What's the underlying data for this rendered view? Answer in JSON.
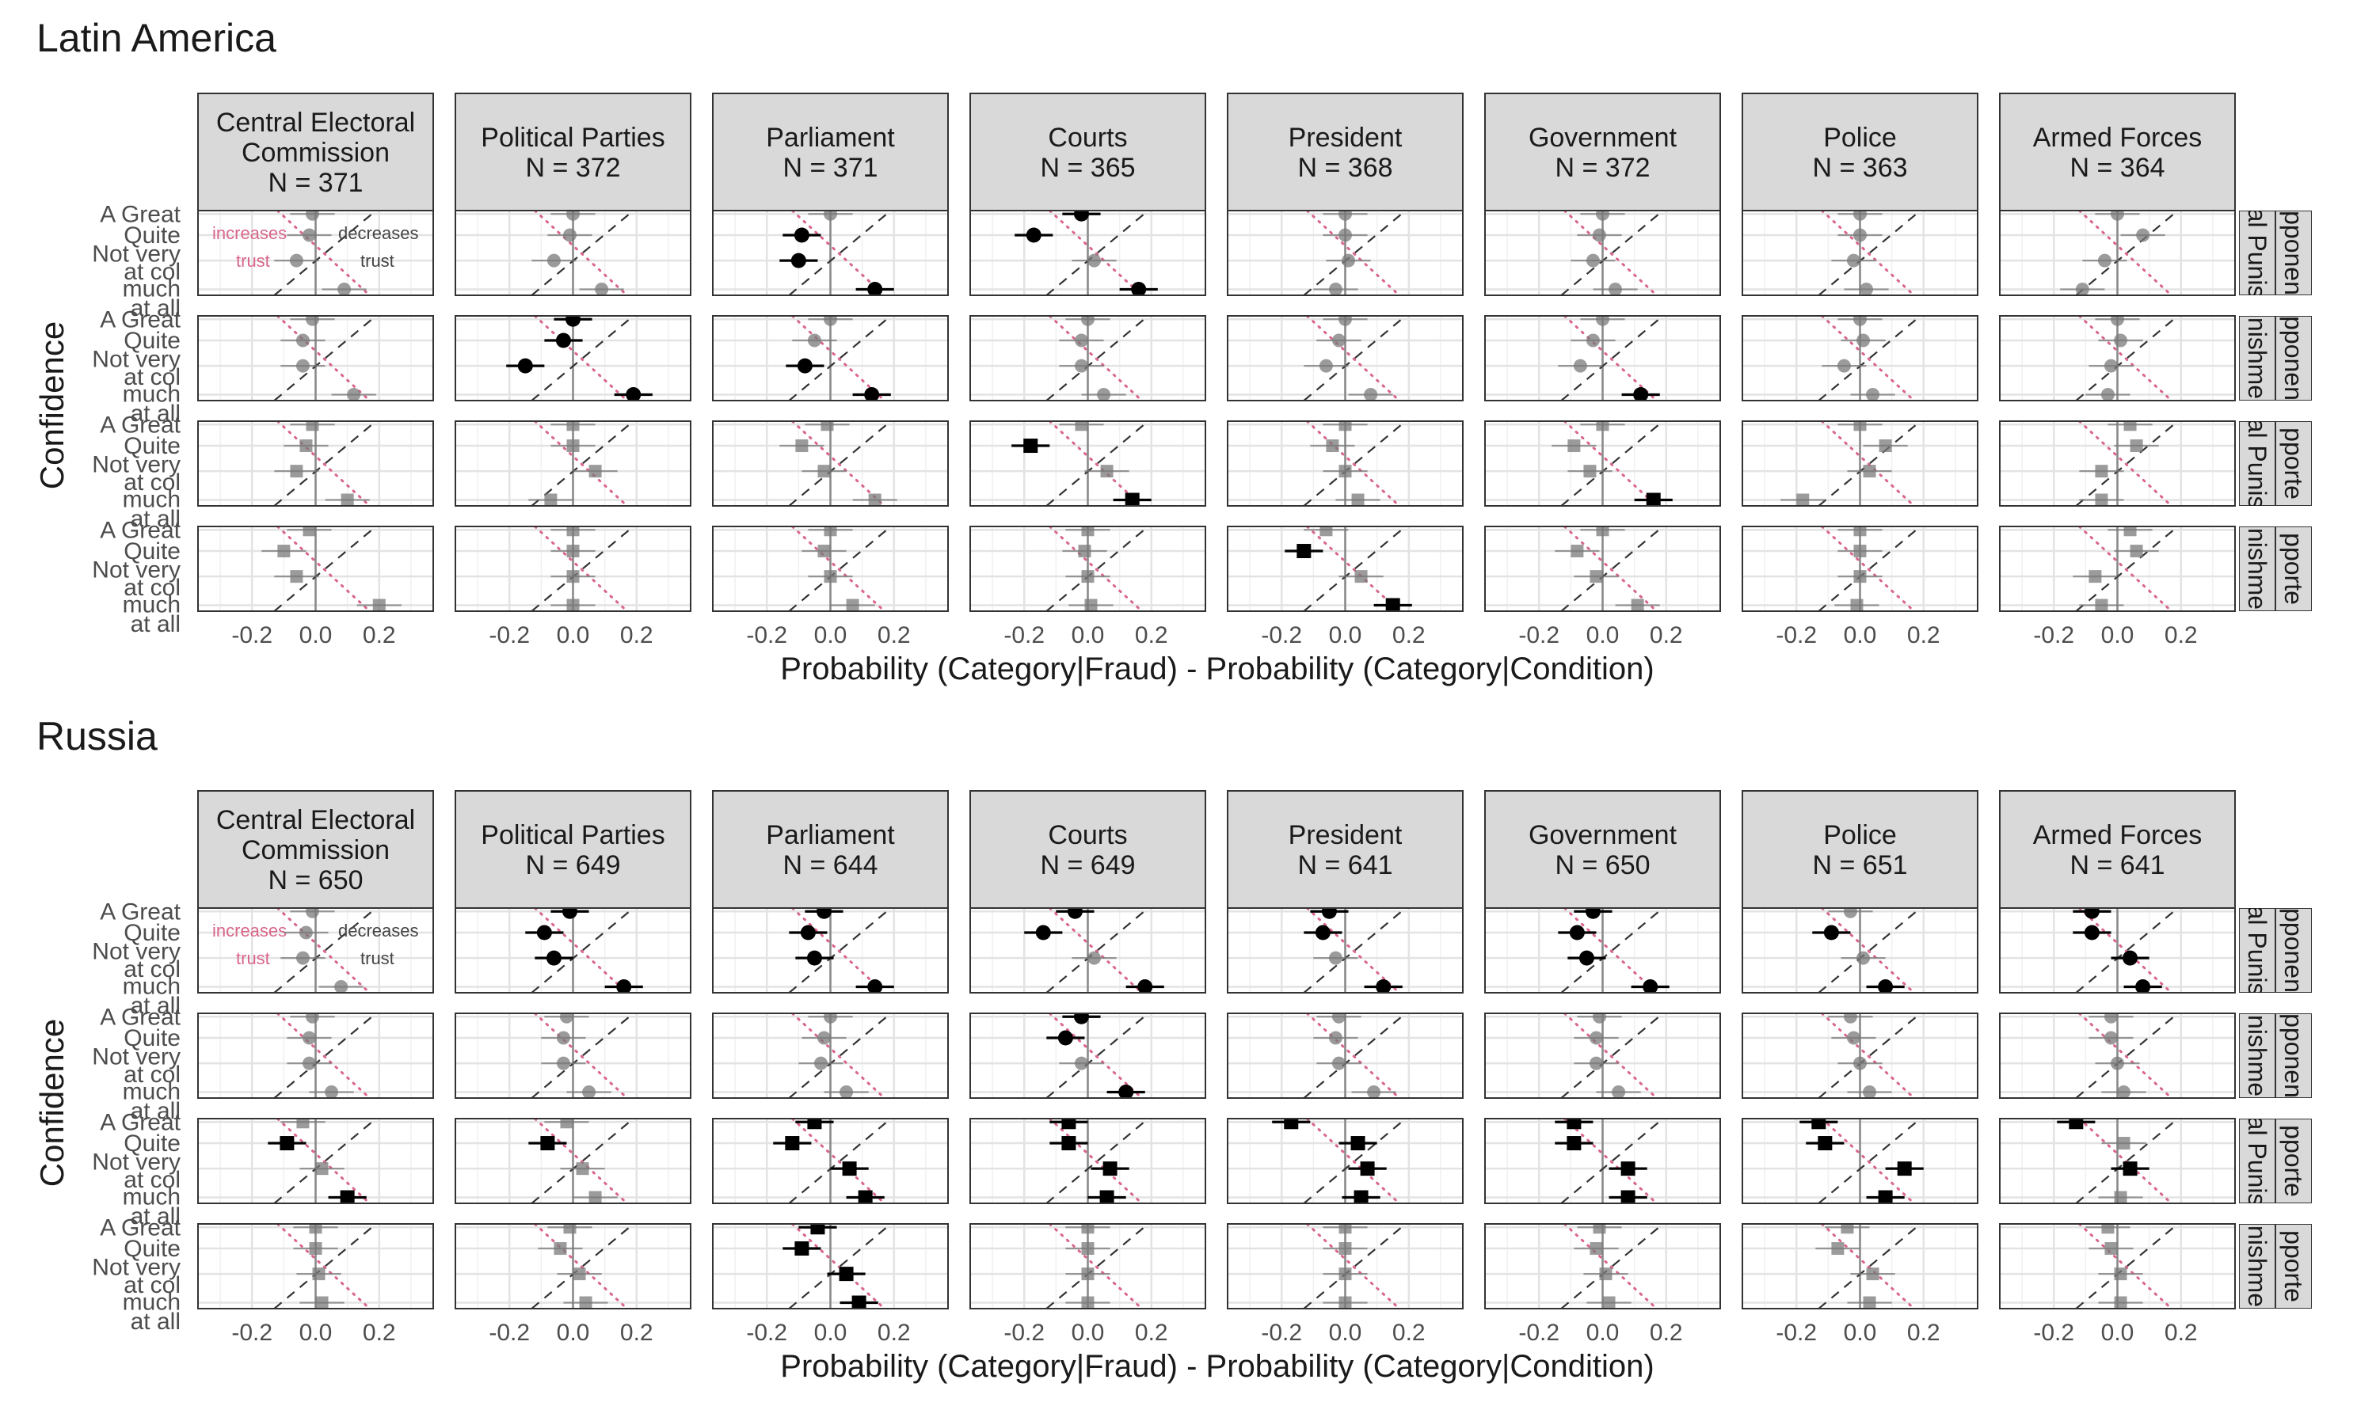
{
  "chart_data": [
    {
      "type": "scatter",
      "title": "Latin America",
      "ylabel": "Confidence",
      "xlabel": "Probability (Category|Fraud) - Probability (Category|Condition)",
      "xlim": [
        -0.37,
        0.37
      ],
      "xticks": [
        -0.2,
        0.0,
        0.2
      ],
      "xtick_labels": [
        "-0.2",
        "0.0",
        "0.2"
      ],
      "y_categories": [
        "A Great",
        "Quite",
        "Not very",
        "None at all"
      ],
      "y_tick_labels": [
        "A Great",
        "Quite",
        "Not very",
        "at col",
        "much",
        "at all"
      ],
      "strip_right_labels": [
        "al Punis | pponen",
        "nishme | pponen",
        "al Punis | pporte",
        "nishme | pporte"
      ],
      "annotations": {
        "increases": "increases",
        "decreases": "decreases",
        "trust": "trust"
      },
      "grid": true,
      "panels": [
        {
          "name": "Central Electoral Commission",
          "label": "Central Electoral\nCommission\nN = 371",
          "rows": [
            [
              -0.01,
              -0.02,
              -0.06,
              0.09
            ],
            [
              -0.01,
              -0.04,
              -0.04,
              0.12
            ],
            [
              -0.01,
              -0.03,
              -0.06,
              0.1
            ],
            [
              -0.02,
              -0.1,
              -0.06,
              0.2
            ]
          ],
          "sig": [
            [
              0,
              0,
              0,
              0
            ],
            [
              0,
              0,
              0,
              0
            ],
            [
              0,
              0,
              0,
              0
            ],
            [
              0,
              0,
              0,
              0
            ]
          ]
        },
        {
          "name": "Political Parties",
          "label": "Political Parties\nN = 372",
          "rows": [
            [
              0.0,
              -0.01,
              -0.06,
              0.09
            ],
            [
              0.0,
              -0.03,
              -0.15,
              0.19
            ],
            [
              0.0,
              0.0,
              0.07,
              -0.07
            ],
            [
              0.0,
              0.0,
              0.0,
              0.0
            ]
          ],
          "sig": [
            [
              0,
              0,
              0,
              0
            ],
            [
              1,
              1,
              1,
              1
            ],
            [
              0,
              0,
              0,
              0
            ],
            [
              0,
              0,
              0,
              0
            ]
          ]
        },
        {
          "name": "Parliament",
          "label": "Parliament\nN = 371",
          "rows": [
            [
              0.0,
              -0.09,
              -0.1,
              0.14
            ],
            [
              0.0,
              -0.05,
              -0.08,
              0.13
            ],
            [
              -0.01,
              -0.09,
              -0.02,
              0.14
            ],
            [
              0.0,
              -0.02,
              0.0,
              0.07
            ]
          ],
          "sig": [
            [
              0,
              1,
              1,
              1
            ],
            [
              0,
              0,
              1,
              1
            ],
            [
              0,
              0,
              0,
              0
            ],
            [
              0,
              0,
              0,
              0
            ]
          ]
        },
        {
          "name": "Courts",
          "label": "Courts\nN = 365",
          "rows": [
            [
              -0.02,
              -0.17,
              0.02,
              0.16
            ],
            [
              0.0,
              -0.02,
              -0.02,
              0.05
            ],
            [
              -0.02,
              -0.18,
              0.06,
              0.14
            ],
            [
              0.0,
              -0.01,
              0.0,
              0.01
            ]
          ],
          "sig": [
            [
              1,
              1,
              0,
              1
            ],
            [
              0,
              0,
              0,
              0
            ],
            [
              0,
              1,
              0,
              1
            ],
            [
              0,
              0,
              0,
              0
            ]
          ]
        },
        {
          "name": "President",
          "label": "President\nN = 368",
          "rows": [
            [
              0.0,
              0.0,
              0.01,
              -0.03
            ],
            [
              0.0,
              -0.02,
              -0.06,
              0.08
            ],
            [
              0.0,
              -0.04,
              0.0,
              0.04
            ],
            [
              -0.06,
              -0.13,
              0.05,
              0.15
            ]
          ],
          "sig": [
            [
              0,
              0,
              0,
              0
            ],
            [
              0,
              0,
              0,
              0
            ],
            [
              0,
              0,
              0,
              0
            ],
            [
              0,
              1,
              0,
              1
            ]
          ]
        },
        {
          "name": "Government",
          "label": "Government\nN = 372",
          "rows": [
            [
              0.0,
              -0.01,
              -0.03,
              0.04
            ],
            [
              0.0,
              -0.03,
              -0.07,
              0.12
            ],
            [
              0.0,
              -0.09,
              -0.04,
              0.16
            ],
            [
              0.0,
              -0.08,
              -0.02,
              0.11
            ]
          ],
          "sig": [
            [
              0,
              0,
              0,
              0
            ],
            [
              0,
              0,
              0,
              1
            ],
            [
              0,
              0,
              0,
              1
            ],
            [
              0,
              0,
              0,
              0
            ]
          ]
        },
        {
          "name": "Police",
          "label": "Police\nN = 363",
          "rows": [
            [
              0.0,
              0.0,
              -0.02,
              0.02
            ],
            [
              0.0,
              0.01,
              -0.05,
              0.04
            ],
            [
              0.0,
              0.08,
              0.03,
              -0.18
            ],
            [
              0.0,
              0.0,
              0.0,
              -0.01
            ]
          ],
          "sig": [
            [
              0,
              0,
              0,
              0
            ],
            [
              0,
              0,
              0,
              0
            ],
            [
              0,
              0,
              0,
              0
            ],
            [
              0,
              0,
              0,
              0
            ]
          ]
        },
        {
          "name": "Armed Forces",
          "label": "Armed Forces\nN = 364",
          "rows": [
            [
              0.0,
              0.08,
              -0.04,
              -0.11
            ],
            [
              0.0,
              0.01,
              -0.02,
              -0.03
            ],
            [
              0.04,
              0.06,
              -0.05,
              -0.05
            ],
            [
              0.04,
              0.06,
              -0.07,
              -0.05
            ]
          ],
          "sig": [
            [
              0,
              0,
              0,
              0
            ],
            [
              0,
              0,
              0,
              0
            ],
            [
              0,
              0,
              0,
              0
            ],
            [
              0,
              0,
              0,
              0
            ]
          ]
        }
      ]
    },
    {
      "type": "scatter",
      "title": "Russia",
      "ylabel": "Confidence",
      "xlabel": "Probability (Category|Fraud) - Probability (Category|Condition)",
      "xlim": [
        -0.37,
        0.37
      ],
      "xticks": [
        -0.2,
        0.0,
        0.2
      ],
      "xtick_labels": [
        "-0.2",
        "0.0",
        "0.2"
      ],
      "y_categories": [
        "A Great",
        "Quite",
        "Not very",
        "None at all"
      ],
      "y_tick_labels": [
        "A Great",
        "Quite",
        "Not very",
        "at col",
        "much",
        "at all"
      ],
      "strip_right_labels": [
        "al Punis | pponen",
        "nishme | pponen",
        "al Punis | pporte",
        "nishme | pporte"
      ],
      "annotations": {
        "increases": "increases",
        "decreases": "decreases",
        "trust": "trust"
      },
      "grid": true,
      "panels": [
        {
          "name": "Central Electoral Commission",
          "label": "Central Electoral\nCommission\nN = 650",
          "rows": [
            [
              -0.01,
              -0.03,
              -0.04,
              0.08
            ],
            [
              -0.01,
              -0.02,
              -0.02,
              0.05
            ],
            [
              -0.04,
              -0.09,
              0.02,
              0.1
            ],
            [
              0.0,
              0.0,
              0.01,
              0.02
            ]
          ],
          "sig": [
            [
              0,
              0,
              0,
              0
            ],
            [
              0,
              0,
              0,
              0
            ],
            [
              0,
              1,
              0,
              1
            ],
            [
              0,
              0,
              0,
              0
            ]
          ]
        },
        {
          "name": "Political Parties",
          "label": "Political Parties\nN = 649",
          "rows": [
            [
              -0.01,
              -0.09,
              -0.06,
              0.16
            ],
            [
              -0.02,
              -0.03,
              -0.03,
              0.05
            ],
            [
              -0.02,
              -0.08,
              0.03,
              0.07
            ],
            [
              -0.01,
              -0.04,
              0.02,
              0.04
            ]
          ],
          "sig": [
            [
              1,
              1,
              1,
              1
            ],
            [
              0,
              0,
              0,
              0
            ],
            [
              0,
              1,
              0,
              0
            ],
            [
              0,
              0,
              0,
              0
            ]
          ]
        },
        {
          "name": "Parliament",
          "label": "Parliament\nN = 644",
          "rows": [
            [
              -0.02,
              -0.07,
              -0.05,
              0.14
            ],
            [
              0.0,
              -0.02,
              -0.03,
              0.05
            ],
            [
              -0.05,
              -0.12,
              0.06,
              0.11
            ],
            [
              -0.04,
              -0.09,
              0.05,
              0.09
            ]
          ],
          "sig": [
            [
              1,
              1,
              1,
              1
            ],
            [
              0,
              0,
              0,
              0
            ],
            [
              1,
              1,
              1,
              1
            ],
            [
              1,
              1,
              1,
              1
            ]
          ]
        },
        {
          "name": "Courts",
          "label": "Courts\nN = 649",
          "rows": [
            [
              -0.04,
              -0.14,
              0.02,
              0.18
            ],
            [
              -0.02,
              -0.07,
              -0.02,
              0.12
            ],
            [
              -0.06,
              -0.06,
              0.07,
              0.06
            ],
            [
              0.0,
              0.0,
              0.0,
              0.0
            ]
          ],
          "sig": [
            [
              1,
              1,
              0,
              1
            ],
            [
              1,
              1,
              0,
              1
            ],
            [
              1,
              1,
              1,
              1
            ],
            [
              0,
              0,
              0,
              0
            ]
          ]
        },
        {
          "name": "President",
          "label": "President\nN = 641",
          "rows": [
            [
              -0.05,
              -0.07,
              -0.03,
              0.12
            ],
            [
              -0.02,
              -0.03,
              -0.02,
              0.09
            ],
            [
              -0.17,
              0.04,
              0.07,
              0.05
            ],
            [
              0.0,
              0.0,
              0.0,
              0.0
            ]
          ],
          "sig": [
            [
              1,
              1,
              0,
              1
            ],
            [
              0,
              0,
              0,
              0
            ],
            [
              1,
              1,
              1,
              1
            ],
            [
              0,
              0,
              0,
              0
            ]
          ]
        },
        {
          "name": "Government",
          "label": "Government\nN = 650",
          "rows": [
            [
              -0.03,
              -0.08,
              -0.05,
              0.15
            ],
            [
              -0.01,
              -0.02,
              -0.02,
              0.05
            ],
            [
              -0.09,
              -0.09,
              0.08,
              0.08
            ],
            [
              -0.01,
              -0.02,
              0.01,
              0.02
            ]
          ],
          "sig": [
            [
              1,
              1,
              1,
              1
            ],
            [
              0,
              0,
              0,
              0
            ],
            [
              1,
              1,
              1,
              1
            ],
            [
              0,
              0,
              0,
              0
            ]
          ]
        },
        {
          "name": "Police",
          "label": "Police\nN = 651",
          "rows": [
            [
              -0.03,
              -0.09,
              0.01,
              0.08
            ],
            [
              -0.03,
              -0.02,
              0.0,
              0.03
            ],
            [
              -0.13,
              -0.11,
              0.14,
              0.08
            ],
            [
              -0.04,
              -0.07,
              0.04,
              0.03
            ]
          ],
          "sig": [
            [
              0,
              1,
              0,
              1
            ],
            [
              0,
              0,
              0,
              0
            ],
            [
              1,
              1,
              1,
              1
            ],
            [
              0,
              0,
              0,
              0
            ]
          ]
        },
        {
          "name": "Armed Forces",
          "label": "Armed Forces\nN = 641",
          "rows": [
            [
              -0.08,
              -0.08,
              0.04,
              0.08
            ],
            [
              -0.02,
              -0.02,
              0.0,
              0.02
            ],
            [
              -0.13,
              0.02,
              0.04,
              0.01
            ],
            [
              -0.03,
              -0.02,
              0.01,
              0.01
            ]
          ],
          "sig": [
            [
              1,
              1,
              1,
              1
            ],
            [
              0,
              0,
              0,
              0
            ],
            [
              1,
              0,
              1,
              0
            ],
            [
              0,
              0,
              0,
              0
            ]
          ]
        }
      ]
    }
  ]
}
